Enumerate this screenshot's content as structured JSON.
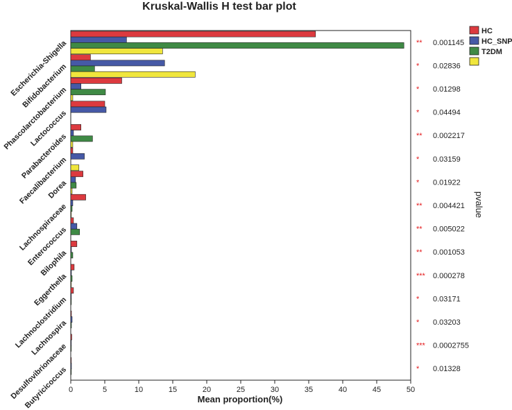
{
  "chart_data": {
    "type": "bar",
    "orientation": "horizontal",
    "title": "Kruskal-Wallis H test bar plot",
    "xlabel": "Mean proportion(%)",
    "right_axis_label": "pvalue",
    "xlim": [
      0,
      50
    ],
    "xticks": [
      "0",
      "5",
      "10",
      "15",
      "20",
      "25",
      "30",
      "35",
      "40",
      "45",
      "50"
    ],
    "legend": {
      "position": "top-right",
      "entries": [
        {
          "name": "HC",
          "color": "#dc3a3f"
        },
        {
          "name": "HC_SNP",
          "color": "#4659a6"
        },
        {
          "name": "T2DM",
          "color": "#3f8a45"
        },
        {
          "name": "",
          "color": "#f0e63c"
        }
      ]
    },
    "categories": [
      "Escherichia-Shigella",
      "Bifidobacterium",
      "Phascolarctobacterium",
      "Lactococcus",
      "Parabacteroides",
      "Faecalibacterium",
      "Dorea",
      "Lachnospiraceae",
      "Enterococcus",
      "Bilophila",
      "Eggerthella",
      "Lachnoclostridium",
      "Lachnospira",
      "Desulfovibrionaceae",
      "Butyricicoccus"
    ],
    "series": [
      {
        "name": "HC",
        "color": "#dc3a3f",
        "values": [
          36.0,
          2.9,
          7.5,
          5.0,
          1.5,
          0.3,
          1.8,
          2.2,
          0.4,
          0.9,
          0.5,
          0.4,
          0.1,
          0.15,
          0.05
        ]
      },
      {
        "name": "HC_SNP",
        "color": "#4659a6",
        "values": [
          8.2,
          13.8,
          1.5,
          5.2,
          0.4,
          2.0,
          0.7,
          0.3,
          0.9,
          0.1,
          0.1,
          0.05,
          0.2,
          0.05,
          0.1
        ]
      },
      {
        "name": "T2DM",
        "color": "#3f8a45",
        "values": [
          49.0,
          3.5,
          5.1,
          0.0,
          3.2,
          0.0,
          0.8,
          0.2,
          1.3,
          0.3,
          0.2,
          0.05,
          0.1,
          0.05,
          0.05
        ]
      },
      {
        "name": "",
        "color": "#f0e63c",
        "values": [
          13.5,
          18.3,
          0.3,
          0.0,
          0.3,
          1.2,
          0.2,
          0.05,
          0.0,
          0.0,
          0.05,
          0.0,
          0.0,
          0.0,
          0.0
        ]
      }
    ],
    "pvalues": [
      {
        "stars": "**",
        "value": "0.001145"
      },
      {
        "stars": "*",
        "value": "0.02836"
      },
      {
        "stars": "*",
        "value": "0.01298"
      },
      {
        "stars": "*",
        "value": "0.04494"
      },
      {
        "stars": "**",
        "value": "0.002217"
      },
      {
        "stars": "*",
        "value": "0.03159"
      },
      {
        "stars": "*",
        "value": "0.01922"
      },
      {
        "stars": "**",
        "value": "0.004421"
      },
      {
        "stars": "**",
        "value": "0.005022"
      },
      {
        "stars": "**",
        "value": "0.001053"
      },
      {
        "stars": "***",
        "value": "0.000278"
      },
      {
        "stars": "*",
        "value": "0.03171"
      },
      {
        "stars": "*",
        "value": "0.03203"
      },
      {
        "stars": "***",
        "value": "0.0002755"
      },
      {
        "stars": "*",
        "value": "0.01328"
      }
    ]
  }
}
